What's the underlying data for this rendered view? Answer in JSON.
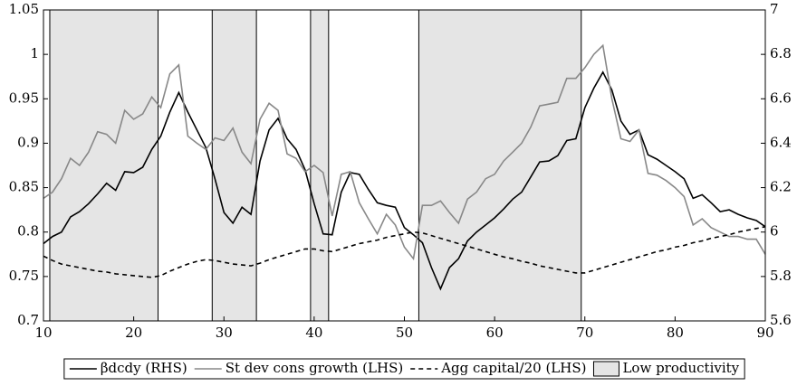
{
  "chart_data": {
    "type": "line",
    "x": [
      10,
      11,
      12,
      13,
      14,
      15,
      16,
      17,
      18,
      19,
      20,
      21,
      22,
      23,
      24,
      25,
      26,
      27,
      28,
      29,
      30,
      31,
      32,
      33,
      34,
      35,
      36,
      37,
      38,
      39,
      40,
      41,
      42,
      43,
      44,
      45,
      46,
      47,
      48,
      49,
      50,
      51,
      52,
      53,
      54,
      55,
      56,
      57,
      58,
      59,
      60,
      61,
      62,
      63,
      64,
      65,
      66,
      67,
      68,
      69,
      70,
      71,
      72,
      73,
      74,
      75,
      76,
      77,
      78,
      79,
      80,
      81,
      82,
      83,
      84,
      85,
      86,
      87,
      88,
      89,
      90
    ],
    "xlim": [
      10,
      90
    ],
    "xticks": [
      10,
      20,
      30,
      40,
      50,
      60,
      70,
      80,
      90
    ],
    "ylim": [
      0.7,
      1.05
    ],
    "yticks": [
      0.7,
      0.75,
      0.8,
      0.85,
      0.9,
      0.95,
      1,
      1.05
    ],
    "y2lim": [
      5.6,
      7
    ],
    "y2ticks": [
      5.6,
      5.8,
      6,
      6.2,
      6.4,
      6.6,
      6.8,
      7
    ],
    "legend": "bottom",
    "shaded": {
      "name": "Low productivity",
      "color": "#e5e5e5",
      "ranges": [
        [
          10.7,
          22.7
        ],
        [
          28.7,
          33.6
        ],
        [
          39.6,
          41.6
        ],
        [
          51.6,
          69.6
        ]
      ]
    },
    "series": [
      {
        "name": "βdcdy (RHS)",
        "color": "#000000",
        "axis": "y2",
        "dash": "solid",
        "values": [
          5.948,
          5.98,
          6.0,
          6.068,
          6.092,
          6.128,
          6.172,
          6.22,
          6.188,
          6.272,
          6.268,
          6.292,
          6.372,
          6.432,
          6.54,
          6.628,
          6.54,
          6.46,
          6.38,
          6.24,
          6.088,
          6.04,
          6.112,
          6.08,
          6.32,
          6.46,
          6.512,
          6.42,
          6.372,
          6.28,
          6.128,
          5.992,
          5.988,
          6.18,
          6.268,
          6.26,
          6.192,
          6.132,
          6.12,
          6.112,
          6.02,
          5.988,
          5.952,
          5.84,
          5.744,
          5.84,
          5.88,
          5.96,
          6.0,
          6.032,
          6.064,
          6.104,
          6.148,
          6.18,
          6.248,
          6.316,
          6.32,
          6.344,
          6.412,
          6.42,
          6.56,
          6.648,
          6.72,
          6.64,
          6.5,
          6.44,
          6.46,
          6.348,
          6.328,
          6.3,
          6.272,
          6.24,
          6.152,
          6.168,
          6.132,
          6.092,
          6.1,
          6.08,
          6.064,
          6.052,
          6.024
        ]
      },
      {
        "name": "St dev cons growth (LHS)",
        "color": "#888888",
        "axis": "y",
        "dash": "solid",
        "values": [
          0.838,
          0.845,
          0.86,
          0.883,
          0.875,
          0.89,
          0.913,
          0.91,
          0.9,
          0.937,
          0.927,
          0.933,
          0.952,
          0.94,
          0.978,
          0.988,
          0.908,
          0.9,
          0.893,
          0.906,
          0.903,
          0.917,
          0.89,
          0.877,
          0.927,
          0.945,
          0.937,
          0.888,
          0.883,
          0.868,
          0.875,
          0.867,
          0.818,
          0.865,
          0.868,
          0.833,
          0.815,
          0.798,
          0.82,
          0.808,
          0.783,
          0.77,
          0.83,
          0.83,
          0.835,
          0.822,
          0.81,
          0.837,
          0.845,
          0.86,
          0.865,
          0.88,
          0.89,
          0.9,
          0.918,
          0.942,
          0.944,
          0.946,
          0.973,
          0.973,
          0.985,
          1.0,
          1.01,
          0.95,
          0.905,
          0.902,
          0.915,
          0.866,
          0.864,
          0.858,
          0.85,
          0.84,
          0.808,
          0.815,
          0.805,
          0.8,
          0.795,
          0.795,
          0.792,
          0.792,
          0.775
        ]
      },
      {
        "name": "Agg capital/20 (LHS)",
        "color": "#000000",
        "axis": "y",
        "dash": "dashed",
        "values": [
          0.773,
          0.768,
          0.764,
          0.762,
          0.76,
          0.758,
          0.756,
          0.755,
          0.753,
          0.752,
          0.751,
          0.75,
          0.749,
          0.751,
          0.756,
          0.76,
          0.764,
          0.767,
          0.769,
          0.768,
          0.766,
          0.764,
          0.763,
          0.762,
          0.765,
          0.769,
          0.772,
          0.775,
          0.778,
          0.781,
          0.781,
          0.779,
          0.778,
          0.781,
          0.784,
          0.787,
          0.789,
          0.791,
          0.794,
          0.796,
          0.798,
          0.8,
          0.799,
          0.796,
          0.793,
          0.79,
          0.787,
          0.784,
          0.781,
          0.778,
          0.775,
          0.772,
          0.77,
          0.767,
          0.765,
          0.762,
          0.76,
          0.758,
          0.756,
          0.754,
          0.754,
          0.757,
          0.76,
          0.763,
          0.766,
          0.769,
          0.772,
          0.775,
          0.778,
          0.78,
          0.783,
          0.785,
          0.788,
          0.79,
          0.793,
          0.795,
          0.797,
          0.8,
          0.802,
          0.804,
          0.806
        ]
      }
    ]
  }
}
